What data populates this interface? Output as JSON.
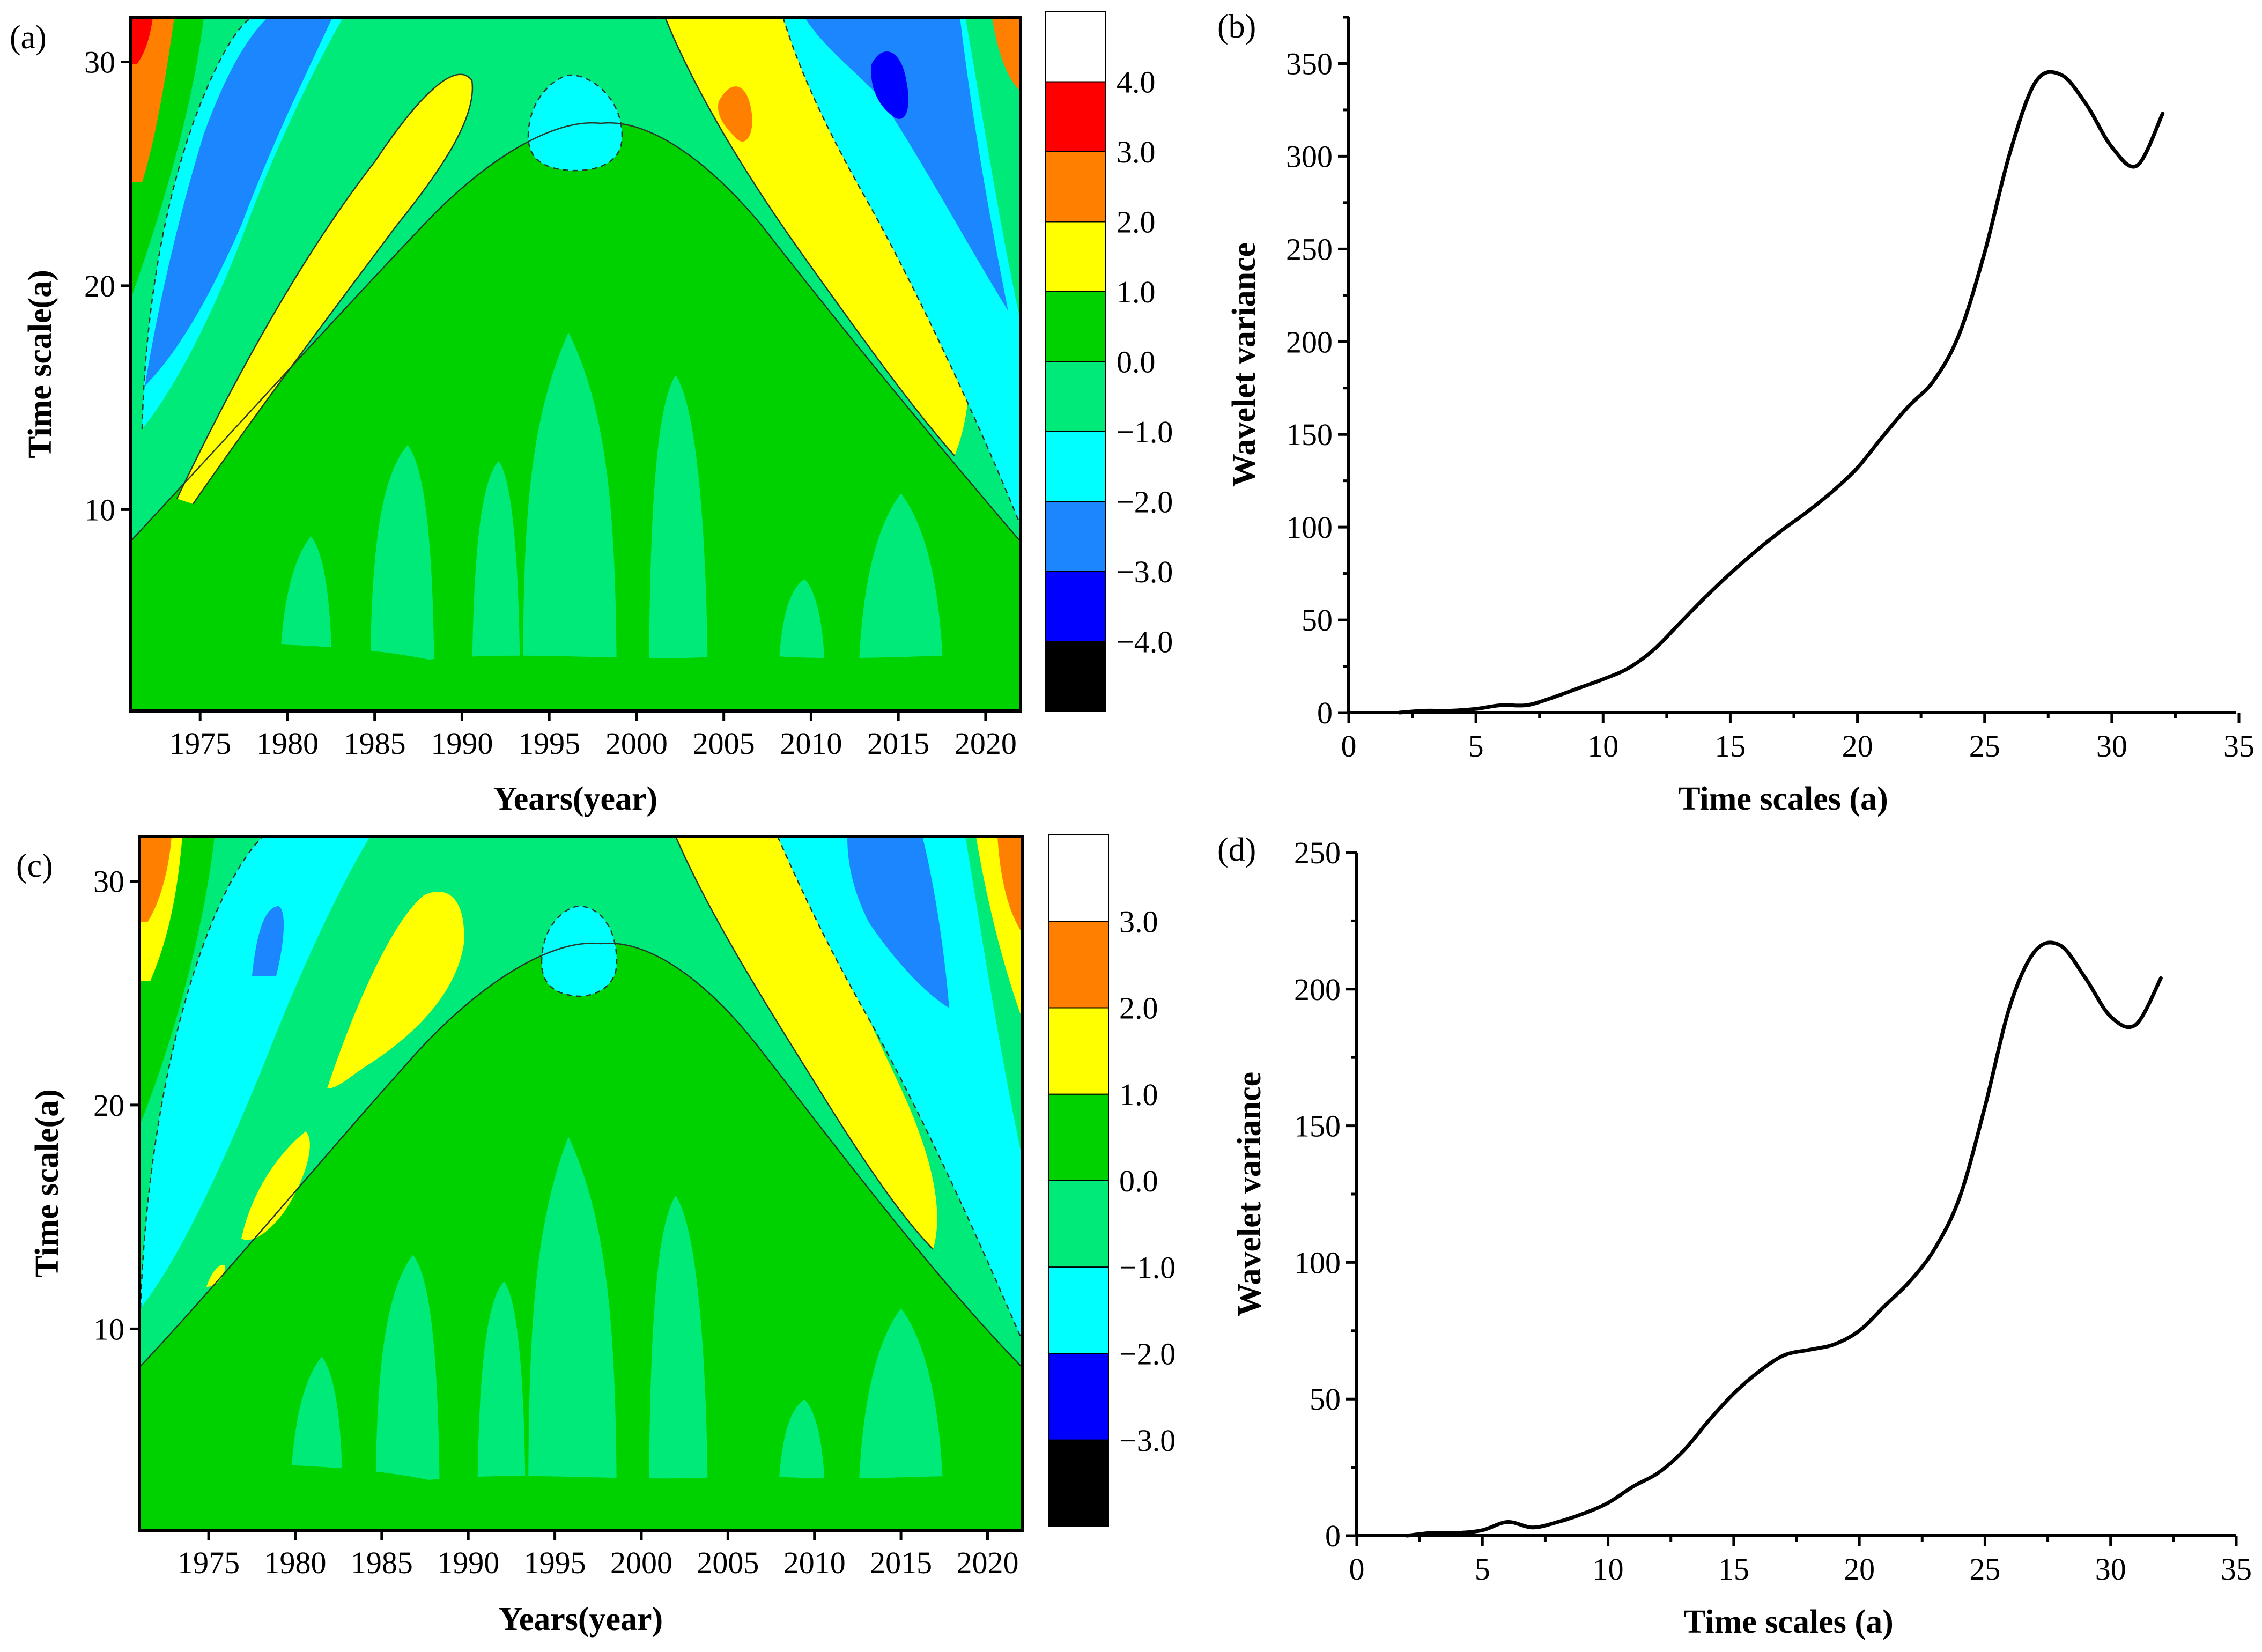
{
  "colors": {
    "lvl_ge4": "#ffffff",
    "lvl_3_4": "#ff0000",
    "lvl_2_3": "#ff8000",
    "lvl_1_2": "#ffff00",
    "lvl_0_1": "#00d200",
    "lvl_m1_0": "#00ea7a",
    "lvl_m2_m1": "#00ffff",
    "lvl_m3_m2": "#1c86ff",
    "lvl_m4_m3": "#0000ff",
    "lvl_lt_m4": "#000000"
  },
  "chart_data": [
    {
      "id": "a",
      "type": "heatmap",
      "panel_label": "(a)",
      "xlabel": "Years(year)",
      "ylabel": "Time scale(a)",
      "xlim": [
        1971,
        2022
      ],
      "ylim": [
        1,
        32
      ],
      "xticks": [
        "1975",
        "1980",
        "1985",
        "1990",
        "1995",
        "2000",
        "2005",
        "2010",
        "2015",
        "2020"
      ],
      "yticks": [
        "10",
        "20",
        "30"
      ],
      "colorbar_labels": [
        "4.0",
        "3.0",
        "2.0",
        "1.0",
        "0.0",
        "−1.0",
        "−2.0",
        "−3.0",
        "−4.0"
      ],
      "note": "wavelet real-part coefficient contour map"
    },
    {
      "id": "b",
      "type": "line",
      "panel_label": "(b)",
      "xlabel": "Time scales (a)",
      "ylabel": "Wavelet variance",
      "xlim": [
        0,
        35
      ],
      "ylim": [
        0,
        375
      ],
      "xticks": [
        "0",
        "5",
        "10",
        "15",
        "20",
        "25",
        "30",
        "35"
      ],
      "yticks": [
        "0",
        "50",
        "100",
        "150",
        "200",
        "250",
        "300",
        "350"
      ],
      "x": [
        2,
        3,
        4,
        5,
        6,
        7,
        8,
        9,
        10,
        11,
        12,
        13,
        14,
        15,
        16,
        17,
        18,
        19,
        20,
        21,
        22,
        23,
        24,
        25,
        26,
        27,
        28,
        29,
        30,
        31,
        32
      ],
      "y": [
        0,
        1,
        1,
        2,
        4,
        4,
        8,
        13,
        18,
        24,
        34,
        48,
        62,
        75,
        87,
        98,
        108,
        119,
        132,
        149,
        165,
        179,
        204,
        248,
        302,
        340,
        344,
        328,
        305,
        295,
        323
      ]
    },
    {
      "id": "c",
      "type": "heatmap",
      "panel_label": "(c)",
      "xlabel": "Years(year)",
      "ylabel": "Time scale(a)",
      "xlim": [
        1971,
        2022
      ],
      "ylim": [
        1,
        32
      ],
      "xticks": [
        "1975",
        "1980",
        "1985",
        "1990",
        "1995",
        "2000",
        "2005",
        "2010",
        "2015",
        "2020"
      ],
      "yticks": [
        "10",
        "20",
        "30"
      ],
      "colorbar_labels": [
        "3.0",
        "2.0",
        "1.0",
        "0.0",
        "−1.0",
        "−2.0",
        "−3.0"
      ],
      "note": "wavelet real-part coefficient contour map"
    },
    {
      "id": "d",
      "type": "line",
      "panel_label": "(d)",
      "xlabel": "Time scales (a)",
      "ylabel": "Wavelet variance",
      "xlim": [
        0,
        35
      ],
      "ylim": [
        0,
        250
      ],
      "xticks": [
        "0",
        "5",
        "10",
        "15",
        "20",
        "25",
        "30",
        "35"
      ],
      "yticks": [
        "0",
        "50",
        "100",
        "150",
        "200",
        "250"
      ],
      "x": [
        2,
        3,
        4,
        5,
        6,
        7,
        8,
        9,
        10,
        11,
        12,
        13,
        14,
        15,
        16,
        17,
        18,
        19,
        20,
        21,
        22,
        23,
        24,
        25,
        26,
        27,
        28,
        29,
        30,
        31,
        32
      ],
      "y": [
        0,
        1,
        1,
        2,
        5,
        3,
        5,
        8,
        12,
        18,
        23,
        31,
        42,
        52,
        60,
        66,
        68,
        70,
        75,
        84,
        93,
        105,
        124,
        157,
        194,
        214,
        216,
        204,
        190,
        187,
        204
      ]
    }
  ]
}
